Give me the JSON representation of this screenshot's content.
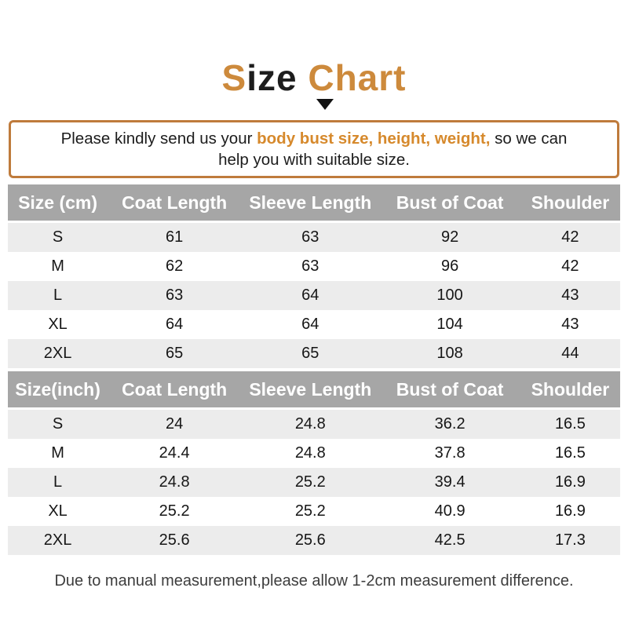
{
  "colors": {
    "accent_orange": "#cd8a3c",
    "highlight_orange": "#d6892c",
    "notice_border": "#bf7b3c",
    "table_header_bg": "#a6a6a6",
    "row_stripe_bg": "#ececec"
  },
  "title": {
    "part1_orange": "S",
    "part2_black": "ize ",
    "part3_orange": "Chart"
  },
  "notice": {
    "segment1": "Please kindly send us your ",
    "highlight": "body bust size, height, weight,",
    "segment2": " so we can",
    "line2": "help you with suitable size."
  },
  "tables": [
    {
      "headers": [
        "Size (cm)",
        "Coat Length",
        "Sleeve Length",
        "Bust of Coat",
        "Shoulder"
      ],
      "rows": [
        [
          "S",
          "61",
          "63",
          "92",
          "42"
        ],
        [
          "M",
          "62",
          "63",
          "96",
          "42"
        ],
        [
          "L",
          "63",
          "64",
          "100",
          "43"
        ],
        [
          "XL",
          "64",
          "64",
          "104",
          "43"
        ],
        [
          "2XL",
          "65",
          "65",
          "108",
          "44"
        ]
      ]
    },
    {
      "headers": [
        "Size(inch)",
        "Coat Length",
        "Sleeve Length",
        "Bust of Coat",
        "Shoulder"
      ],
      "rows": [
        [
          "S",
          "24",
          "24.8",
          "36.2",
          "16.5"
        ],
        [
          "M",
          "24.4",
          "24.8",
          "37.8",
          "16.5"
        ],
        [
          "L",
          "24.8",
          "25.2",
          "39.4",
          "16.9"
        ],
        [
          "XL",
          "25.2",
          "25.2",
          "40.9",
          "16.9"
        ],
        [
          "2XL",
          "25.6",
          "25.6",
          "42.5",
          "17.3"
        ]
      ]
    }
  ],
  "footer": "Due to manual measurement,please allow 1-2cm measurement difference."
}
